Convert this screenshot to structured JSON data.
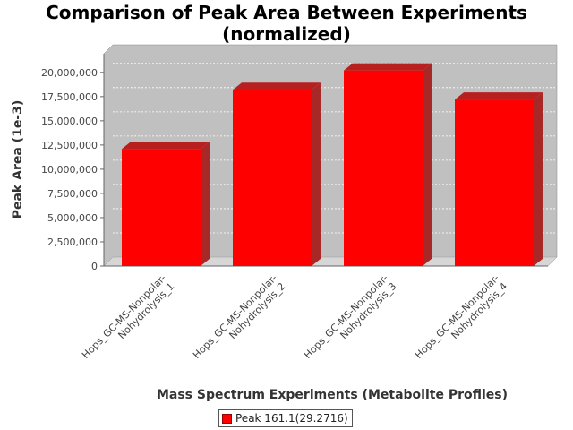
{
  "chart_data": {
    "type": "bar",
    "title": "Comparison of Peak Area Between Experiments (normalized)",
    "title_lines": [
      "Comparison of Peak Area Between Experiments",
      "(normalized)"
    ],
    "xlabel": "Mass Spectrum Experiments (Metabolite Profiles)",
    "ylabel": "Peak Area (1e-3)",
    "categories": [
      "Hops_GC-MS-Nonpolar-Nohydrolysis_1",
      "Hops_GC-MS-Nonpolar-Nohydrolysis_2",
      "Hops_GC-MS-Nonpolar-Nohydrolysis_3",
      "Hops_GC-MS-Nonpolar-Nohydrolysis_4"
    ],
    "category_lines": [
      [
        "Hops_GC-MS-Nonpolar-",
        "Nohydrolysis_1"
      ],
      [
        "Hops_GC-MS-Nonpolar-",
        "Nohydrolysis_2"
      ],
      [
        "Hops_GC-MS-Nonpolar-",
        "Nohydrolysis_3"
      ],
      [
        "Hops_GC-MS-Nonpolar-",
        "Nohydrolysis_4"
      ]
    ],
    "series": [
      {
        "name": "Peak 161.1(29.2716)",
        "values": [
          12100000,
          18200000,
          20200000,
          17200000
        ],
        "color": "#ff0000"
      }
    ],
    "ylim": [
      0,
      21000000
    ],
    "yticks": [
      0,
      2500000,
      5000000,
      7500000,
      10000000,
      12500000,
      15000000,
      17500000,
      20000000
    ],
    "ytick_labels": [
      "0",
      "2,500,000",
      "5,000,000",
      "7,500,000",
      "10,000,000",
      "12,500,000",
      "15,000,000",
      "17,500,000",
      "20,000,000"
    ],
    "grid": true,
    "legend": "bottom-center",
    "colors": {
      "plot_background": "#c0c0c0",
      "bar": "#ff0000"
    }
  }
}
